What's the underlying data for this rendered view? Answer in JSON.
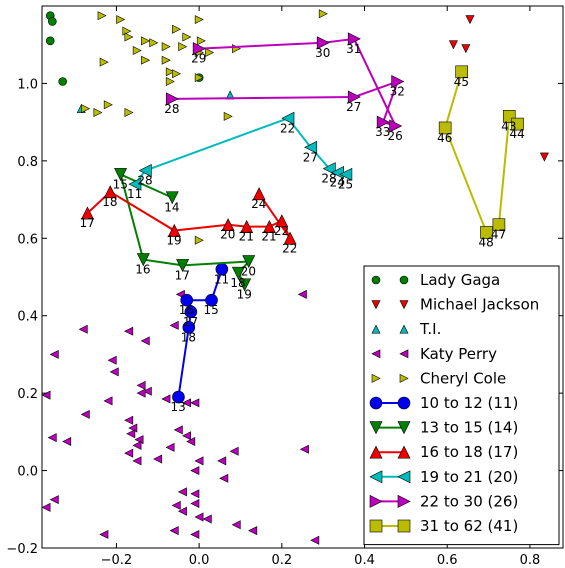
{
  "chart_data": {
    "type": "scatter",
    "xlim": [
      -0.38,
      0.88
    ],
    "ylim": [
      -0.2,
      1.2
    ],
    "xticks": [
      {
        "value": -0.2,
        "label": "−0.2"
      },
      {
        "value": 0.0,
        "label": "0.0"
      },
      {
        "value": 0.2,
        "label": "0.2"
      },
      {
        "value": 0.4,
        "label": "0.4"
      },
      {
        "value": 0.6,
        "label": "0.6"
      },
      {
        "value": 0.8,
        "label": "0.8"
      }
    ],
    "yticks": [
      {
        "value": -0.2,
        "label": "−0.2"
      },
      {
        "value": 0.0,
        "label": "0.0"
      },
      {
        "value": 0.2,
        "label": "0.2"
      },
      {
        "value": 0.4,
        "label": "0.4"
      },
      {
        "value": 0.6,
        "label": "0.6"
      },
      {
        "value": 0.8,
        "label": "0.8"
      },
      {
        "value": 1.0,
        "label": "1.0"
      }
    ],
    "grid": false,
    "legend_position": "bottom-right",
    "scatter_series": [
      {
        "name": "Lady Gaga",
        "marker": "circle",
        "color": "#007f00",
        "points": [
          [
            -0.36,
            1.175
          ],
          [
            -0.355,
            1.16
          ],
          [
            -0.36,
            1.11
          ],
          [
            -0.33,
            1.005
          ],
          [
            0.0,
            1.015
          ]
        ]
      },
      {
        "name": "Michael Jackson",
        "marker": "triangle-down",
        "color": "#ee0000",
        "points": [
          [
            0.655,
            1.165
          ],
          [
            0.615,
            1.1
          ],
          [
            0.645,
            1.09
          ],
          [
            0.835,
            0.81
          ]
        ]
      },
      {
        "name": "T.I.",
        "marker": "triangle-up",
        "color": "#00bbbb",
        "points": [
          [
            -0.285,
            0.935
          ],
          [
            0.075,
            0.97
          ]
        ]
      },
      {
        "name": "Katy Perry",
        "marker": "triangle-left",
        "color": "#bb00bb",
        "points": [
          [
            -0.045,
            0.455
          ],
          [
            -0.06,
            0.375
          ],
          [
            0.25,
            0.455
          ],
          [
            -0.17,
            0.36
          ],
          [
            -0.28,
            0.365
          ],
          [
            -0.13,
            0.335
          ],
          [
            -0.35,
            0.3
          ],
          [
            -0.21,
            0.285
          ],
          [
            -0.205,
            0.255
          ],
          [
            -0.14,
            0.22
          ],
          [
            -0.125,
            0.205
          ],
          [
            -0.14,
            0.2
          ],
          [
            -0.37,
            0.195
          ],
          [
            -0.22,
            0.18
          ],
          [
            -0.275,
            0.145
          ],
          [
            -0.08,
            0.185
          ],
          [
            -0.01,
            0.175
          ],
          [
            -0.03,
            0.175
          ],
          [
            -0.17,
            0.13
          ],
          [
            -0.16,
            0.11
          ],
          [
            -0.165,
            0.095
          ],
          [
            -0.145,
            0.08
          ],
          [
            -0.05,
            0.105
          ],
          [
            -0.355,
            0.085
          ],
          [
            -0.32,
            0.075
          ],
          [
            -0.15,
            0.065
          ],
          [
            -0.03,
            0.09
          ],
          [
            -0.02,
            0.075
          ],
          [
            -0.07,
            0.06
          ],
          [
            -0.1,
            0.03
          ],
          [
            -0.17,
            0.045
          ],
          [
            -0.15,
            0.025
          ],
          [
            0.0,
            0.025
          ],
          [
            0.055,
            0.025
          ],
          [
            0.085,
            0.05
          ],
          [
            -0.01,
            0.0
          ],
          [
            0.255,
            0.055
          ],
          [
            -0.04,
            -0.055
          ],
          [
            -0.01,
            -0.06
          ],
          [
            0.06,
            -0.02
          ],
          [
            -0.01,
            -0.085
          ],
          [
            -0.055,
            -0.09
          ],
          [
            -0.04,
            -0.105
          ],
          [
            0.0,
            -0.12
          ],
          [
            0.02,
            -0.125
          ],
          [
            -0.06,
            -0.155
          ],
          [
            0.09,
            -0.14
          ],
          [
            0.13,
            -0.155
          ],
          [
            -0.37,
            -0.095
          ],
          [
            -0.35,
            -0.075
          ],
          [
            -0.23,
            -0.165
          ],
          [
            -0.01,
            -0.165
          ],
          [
            0.28,
            -0.18
          ]
        ]
      },
      {
        "name": "Cheryl Cole",
        "marker": "triangle-right",
        "color": "#bbbb00",
        "points": [
          [
            -0.235,
            1.175
          ],
          [
            -0.19,
            1.165
          ],
          [
            0.0,
            1.165
          ],
          [
            -0.175,
            1.135
          ],
          [
            -0.17,
            1.12
          ],
          [
            -0.13,
            1.11
          ],
          [
            -0.11,
            1.105
          ],
          [
            -0.08,
            1.095
          ],
          [
            -0.15,
            1.085
          ],
          [
            -0.055,
            1.14
          ],
          [
            -0.03,
            1.12
          ],
          [
            0.005,
            1.11
          ],
          [
            -0.04,
            1.095
          ],
          [
            0.0,
            1.08
          ],
          [
            0.025,
            1.08
          ],
          [
            -0.13,
            1.06
          ],
          [
            -0.08,
            1.06
          ],
          [
            0.09,
            1.09
          ],
          [
            -0.23,
            1.055
          ],
          [
            -0.07,
            1.03
          ],
          [
            -0.055,
            1.025
          ],
          [
            -0.07,
            1.005
          ],
          [
            0.0,
            1.015
          ],
          [
            -0.275,
            0.935
          ],
          [
            -0.22,
            0.945
          ],
          [
            -0.245,
            0.925
          ],
          [
            -0.17,
            0.925
          ],
          [
            0.07,
            0.915
          ],
          [
            0.0,
            0.595
          ],
          [
            0.3,
            1.18
          ]
        ]
      }
    ],
    "path_series": [
      {
        "name": "10 to 12 (11)",
        "marker": "circle",
        "color": "#0000ee",
        "points": [
          [
            -0.05,
            0.19,
            "13"
          ],
          [
            -0.025,
            0.37,
            "18"
          ],
          [
            -0.02,
            0.41,
            "17"
          ],
          [
            -0.03,
            0.44,
            "16"
          ],
          [
            0.03,
            0.44,
            "15"
          ],
          [
            0.055,
            0.52,
            "11"
          ]
        ]
      },
      {
        "name": "13 to 15 (14)",
        "marker": "triangle-down",
        "color": "#007f00",
        "points": [
          [
            0.11,
            0.48,
            "19"
          ],
          [
            0.095,
            0.51,
            "18"
          ],
          [
            0.12,
            0.54,
            "20"
          ],
          [
            -0.04,
            0.53,
            "17"
          ],
          [
            -0.135,
            0.545,
            "16"
          ],
          [
            -0.19,
            0.765,
            "15"
          ],
          [
            -0.065,
            0.705,
            "14"
          ]
        ]
      },
      {
        "name": "16 to 18 (17)",
        "marker": "triangle-up",
        "color": "#ee0000",
        "points": [
          [
            -0.27,
            0.665,
            "17"
          ],
          [
            -0.215,
            0.72,
            "18"
          ],
          [
            -0.06,
            0.62,
            "19"
          ],
          [
            0.07,
            0.635,
            "20"
          ],
          [
            0.115,
            0.63,
            "21"
          ],
          [
            0.17,
            0.63,
            "21"
          ],
          [
            0.2,
            0.645,
            "22"
          ],
          [
            0.22,
            0.6,
            "22"
          ],
          [
            0.145,
            0.715,
            "24"
          ]
        ]
      },
      {
        "name": "19 to 21 (20)",
        "marker": "triangle-left",
        "color": "#00bbbb",
        "points": [
          [
            -0.155,
            0.74,
            "11"
          ],
          [
            -0.13,
            0.775,
            "28"
          ],
          [
            0.215,
            0.91,
            "22"
          ],
          [
            0.27,
            0.835,
            "27"
          ],
          [
            0.315,
            0.78,
            "28"
          ],
          [
            0.335,
            0.77,
            "24"
          ],
          [
            0.355,
            0.765,
            "25"
          ]
        ]
      },
      {
        "name": "22 to 30 (26)",
        "marker": "triangle-right",
        "color": "#bb00bb",
        "points": [
          [
            -0.065,
            0.96,
            "28"
          ],
          [
            0.375,
            0.965,
            "27"
          ],
          [
            0.48,
            1.005,
            "32"
          ],
          [
            0.445,
            0.9,
            "33"
          ],
          [
            0.475,
            0.89,
            "26"
          ],
          [
            0.375,
            1.115,
            "31"
          ],
          [
            0.3,
            1.105,
            "30"
          ],
          [
            0.0,
            1.09,
            "29"
          ]
        ]
      },
      {
        "name": "31 to 62 (41)",
        "marker": "square",
        "color": "#bbbb00",
        "points": [
          [
            0.635,
            1.03,
            "45"
          ],
          [
            0.595,
            0.885,
            "46"
          ],
          [
            0.695,
            0.615,
            "48"
          ],
          [
            0.725,
            0.635,
            "47"
          ],
          [
            0.75,
            0.915,
            "43"
          ],
          [
            0.77,
            0.895,
            "44"
          ]
        ]
      }
    ]
  }
}
